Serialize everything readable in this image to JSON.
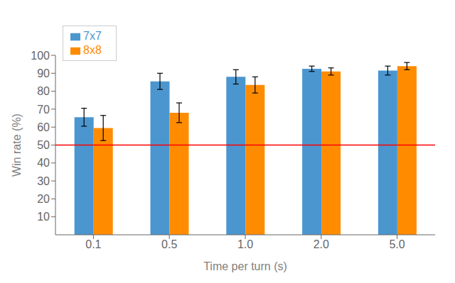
{
  "chart_data": {
    "type": "bar",
    "xlabel": "Time per turn (s)",
    "ylabel": "Win rate (%)",
    "categories": [
      "0.1",
      "0.5",
      "1.0",
      "2.0",
      "5.0"
    ],
    "series": [
      {
        "name": "7x7",
        "color": "#4C96D0",
        "values": [
          65.5,
          85.5,
          88.0,
          92.5,
          91.5
        ],
        "errors": [
          5.0,
          4.5,
          4.0,
          1.5,
          2.5
        ]
      },
      {
        "name": "8x8",
        "color": "#FF8C00",
        "values": [
          59.5,
          68.0,
          83.5,
          91.0,
          94.0
        ],
        "errors": [
          7.0,
          5.5,
          4.5,
          2.0,
          2.0
        ]
      }
    ],
    "ylim": [
      0,
      100
    ],
    "yticks": [
      10,
      20,
      30,
      40,
      50,
      60,
      70,
      80,
      90,
      100
    ],
    "reference_line": {
      "y": 50,
      "color": "red"
    },
    "legend": "upper left",
    "grid": false
  }
}
